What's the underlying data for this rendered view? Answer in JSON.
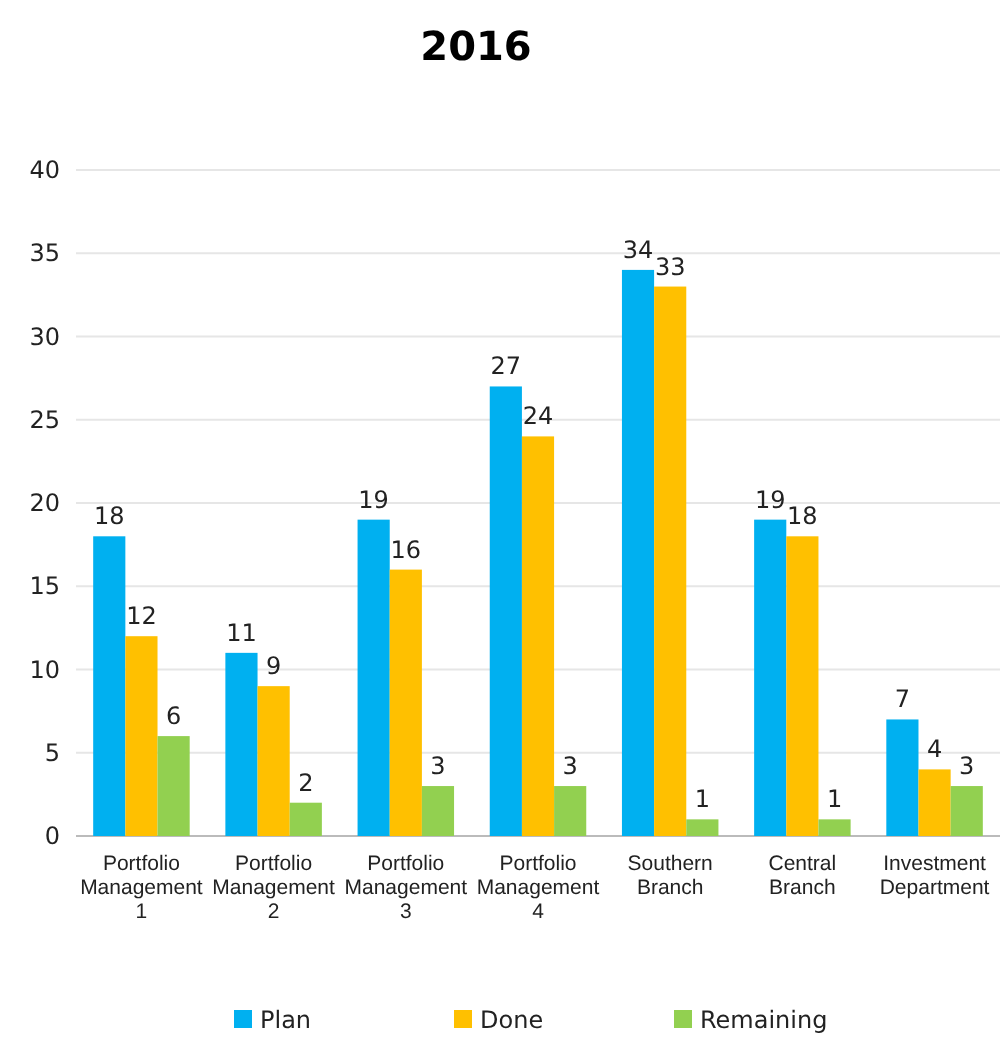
{
  "chart_data": {
    "type": "bar",
    "title": "2016",
    "categories": [
      "Portfolio Management 1",
      "Portfolio Management 2",
      "Portfolio Management 3",
      "Portfolio Management 4",
      "Southern Branch",
      "Central Branch",
      "Investment Department"
    ],
    "series": [
      {
        "name": "Plan",
        "color": "#00b0f0",
        "values": [
          18,
          11,
          19,
          27,
          34,
          19,
          7
        ]
      },
      {
        "name": "Done",
        "color": "#ffc000",
        "values": [
          12,
          9,
          16,
          24,
          33,
          18,
          4
        ]
      },
      {
        "name": "Remaining",
        "color": "#92d050",
        "values": [
          6,
          2,
          3,
          3,
          1,
          1,
          3
        ]
      }
    ],
    "ylim": [
      0,
      40
    ],
    "yticks": [
      0,
      5,
      10,
      15,
      20,
      25,
      30,
      35,
      40
    ],
    "grid": "y",
    "legend": "bottom",
    "data_labels": true
  }
}
